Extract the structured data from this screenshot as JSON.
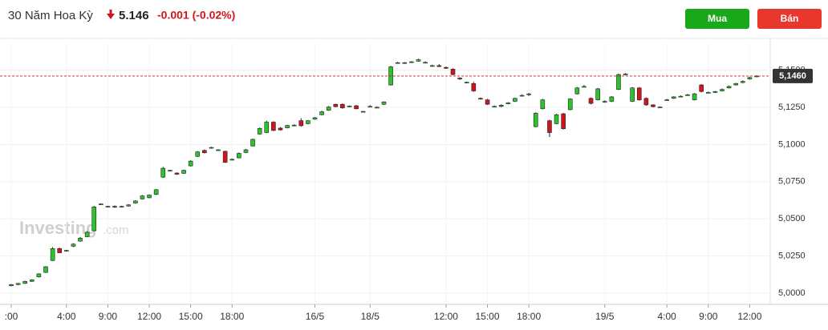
{
  "header": {
    "instrument": "30 Năm Hoa Kỳ",
    "price": "5.146",
    "change": "-0.001 (-0.02%)",
    "buy": "Mua",
    "sell": "Bán",
    "watermark_brand": "Investing",
    "watermark_suffix": ".com"
  },
  "chart_data": {
    "type": "candlestick",
    "categories": [
      ":00",
      null,
      null,
      null,
      null,
      null,
      null,
      null,
      "4:00",
      null,
      null,
      null,
      null,
      null,
      "9:00",
      null,
      null,
      null,
      null,
      null,
      "12:00",
      null,
      null,
      null,
      null,
      null,
      "15:00",
      null,
      null,
      null,
      null,
      null,
      "18:00",
      null,
      null,
      null,
      null,
      null,
      null,
      null,
      null,
      null,
      null,
      null,
      "16/5",
      null,
      null,
      null,
      null,
      null,
      null,
      null,
      "18/5",
      null,
      null,
      null,
      null,
      null,
      null,
      null,
      null,
      null,
      null,
      "12:00",
      null,
      null,
      null,
      null,
      null,
      "15:00",
      null,
      null,
      null,
      null,
      null,
      "18:00",
      null,
      null,
      null,
      null,
      null,
      null,
      null,
      null,
      null,
      null,
      "19/5",
      null,
      null,
      null,
      null,
      null,
      null,
      null,
      null,
      "4:00",
      null,
      null,
      null,
      null,
      null,
      "9:00",
      null,
      null,
      null,
      null,
      null,
      "12:00",
      null
    ],
    "open": [
      5.005,
      5.0058,
      5.0066,
      5.008,
      5.011,
      5.014,
      5.022,
      5.03,
      5.0284,
      5.0316,
      5.035,
      5.038,
      5.042,
      5.0598,
      5.058,
      5.0584,
      5.058,
      5.0586,
      5.0606,
      5.0634,
      5.0642,
      5.0664,
      5.078,
      5.0826,
      5.0808,
      5.0806,
      5.0856,
      5.092,
      5.096,
      5.0976,
      5.0964,
      5.0954,
      5.09,
      5.091,
      5.0946,
      5.099,
      5.107,
      5.108,
      5.115,
      5.111,
      5.1112,
      5.1126,
      5.116,
      5.114,
      5.117,
      5.12,
      5.123,
      5.127,
      5.127,
      5.1254,
      5.126,
      5.1222,
      5.1256,
      5.125,
      5.127,
      5.14,
      5.1548,
      5.1546,
      5.1554,
      5.156,
      5.1552,
      5.1528,
      5.153,
      5.1518,
      5.1506,
      5.1446,
      5.1416,
      5.141,
      5.131,
      5.13,
      5.1254,
      5.1256,
      5.1274,
      5.129,
      5.1326,
      5.134,
      5.112,
      5.124,
      5.116,
      5.114,
      5.1206,
      5.1234,
      5.134,
      5.139,
      5.131,
      5.13,
      5.129,
      5.129,
      5.137,
      5.147,
      5.129,
      5.138,
      5.131,
      5.1266,
      5.125,
      5.13,
      5.131,
      5.1324,
      5.1334,
      5.13,
      5.14,
      5.135,
      5.135,
      5.136,
      5.138,
      5.14,
      5.1416,
      5.144,
      5.1456
    ],
    "high": [
      5.0062,
      5.007,
      5.0084,
      5.0094,
      5.0134,
      5.0182,
      5.031,
      5.0306,
      5.0292,
      5.0336,
      5.0378,
      5.0418,
      5.0586,
      5.0604,
      5.0588,
      5.059,
      5.0588,
      5.0598,
      5.0626,
      5.066,
      5.0664,
      5.07,
      5.085,
      5.083,
      5.0812,
      5.083,
      5.0894,
      5.0956,
      5.0966,
      5.0984,
      5.0968,
      5.0958,
      5.0906,
      5.0946,
      5.097,
      5.104,
      5.1114,
      5.116,
      5.1156,
      5.1116,
      5.1132,
      5.1136,
      5.1176,
      5.1164,
      5.1184,
      5.1226,
      5.1258,
      5.1274,
      5.1276,
      5.1262,
      5.1266,
      5.1226,
      5.1264,
      5.1256,
      5.129,
      5.1528,
      5.1556,
      5.1554,
      5.156,
      5.1576,
      5.1558,
      5.1536,
      5.154,
      5.1524,
      5.1512,
      5.1452,
      5.1422,
      5.142,
      5.1316,
      5.1306,
      5.1262,
      5.127,
      5.1284,
      5.1314,
      5.1336,
      5.1346,
      5.1216,
      5.1306,
      5.1166,
      5.1206,
      5.1212,
      5.131,
      5.1386,
      5.14,
      5.1316,
      5.138,
      5.1296,
      5.1324,
      5.1476,
      5.148,
      5.1386,
      5.1386,
      5.1316,
      5.127,
      5.1256,
      5.1306,
      5.1324,
      5.133,
      5.134,
      5.1346,
      5.1406,
      5.1356,
      5.136,
      5.1376,
      5.1396,
      5.1414,
      5.143,
      5.1456,
      5.1466
    ],
    "low": [
      5.0046,
      5.0054,
      5.0062,
      5.0076,
      5.0106,
      5.0136,
      5.0216,
      5.027,
      5.028,
      5.031,
      5.0346,
      5.0376,
      5.0416,
      5.0594,
      5.0576,
      5.0574,
      5.0576,
      5.0582,
      5.0602,
      5.063,
      5.0638,
      5.066,
      5.0776,
      5.082,
      5.0796,
      5.0802,
      5.0852,
      5.0916,
      5.094,
      5.0972,
      5.096,
      5.0876,
      5.0896,
      5.0906,
      5.0942,
      5.0986,
      5.1066,
      5.1076,
      5.109,
      5.1094,
      5.1108,
      5.1122,
      5.112,
      5.1136,
      5.1166,
      5.1196,
      5.1226,
      5.125,
      5.124,
      5.125,
      5.1236,
      5.1218,
      5.1252,
      5.1246,
      5.1266,
      5.1396,
      5.1544,
      5.1542,
      5.1548,
      5.1556,
      5.1548,
      5.1524,
      5.152,
      5.1508,
      5.1466,
      5.1434,
      5.1412,
      5.1354,
      5.1302,
      5.1266,
      5.125,
      5.125,
      5.127,
      5.1286,
      5.1322,
      5.1326,
      5.1116,
      5.1236,
      5.105,
      5.1136,
      5.11,
      5.123,
      5.1336,
      5.1384,
      5.127,
      5.1296,
      5.128,
      5.1286,
      5.1366,
      5.1466,
      5.1286,
      5.1294,
      5.126,
      5.125,
      5.1246,
      5.1294,
      5.1306,
      5.1318,
      5.1328,
      5.1296,
      5.135,
      5.1344,
      5.1346,
      5.1356,
      5.1376,
      5.1396,
      5.1412,
      5.1436,
      5.1452
    ],
    "close": [
      5.0058,
      5.0066,
      5.008,
      5.009,
      5.013,
      5.0178,
      5.03,
      5.0272,
      5.0288,
      5.033,
      5.037,
      5.041,
      5.058,
      5.06,
      5.0584,
      5.0578,
      5.0584,
      5.0594,
      5.062,
      5.0654,
      5.066,
      5.0696,
      5.084,
      5.0826,
      5.08,
      5.0826,
      5.0888,
      5.095,
      5.0944,
      5.098,
      5.0964,
      5.088,
      5.09,
      5.094,
      5.0964,
      5.1034,
      5.1108,
      5.115,
      5.1094,
      5.1098,
      5.1128,
      5.113,
      5.1126,
      5.116,
      5.118,
      5.122,
      5.1252,
      5.1254,
      5.1246,
      5.1258,
      5.124,
      5.1222,
      5.1256,
      5.125,
      5.1286,
      5.1522,
      5.155,
      5.155,
      5.1556,
      5.157,
      5.1552,
      5.153,
      5.1524,
      5.1512,
      5.147,
      5.144,
      5.1418,
      5.136,
      5.1306,
      5.127,
      5.1256,
      5.1264,
      5.128,
      5.131,
      5.133,
      5.134,
      5.121,
      5.13,
      5.108,
      5.12,
      5.1106,
      5.1306,
      5.138,
      5.139,
      5.1276,
      5.1374,
      5.129,
      5.132,
      5.147,
      5.1474,
      5.138,
      5.13,
      5.1266,
      5.1254,
      5.1252,
      5.13,
      5.132,
      5.1324,
      5.1334,
      5.134,
      5.1356,
      5.135,
      5.1356,
      5.137,
      5.139,
      5.141,
      5.1424,
      5.145,
      5.146
    ],
    "up_color": "#2bc52b",
    "down_color": "#d4141c",
    "ylim": [
      4.9925,
      5.1675
    ],
    "yticks": [
      {
        "value": 5.0,
        "label": "5,0000"
      },
      {
        "value": 5.025,
        "label": "5,0250"
      },
      {
        "value": 5.05,
        "label": "5,0500"
      },
      {
        "value": 5.075,
        "label": "5,0750"
      },
      {
        "value": 5.1,
        "label": "5,1000"
      },
      {
        "value": 5.125,
        "label": "5,1250"
      },
      {
        "value": 5.15,
        "label": "5,1500"
      }
    ],
    "last_price": {
      "value": 5.146,
      "label": "5,1460"
    },
    "grid": true
  }
}
